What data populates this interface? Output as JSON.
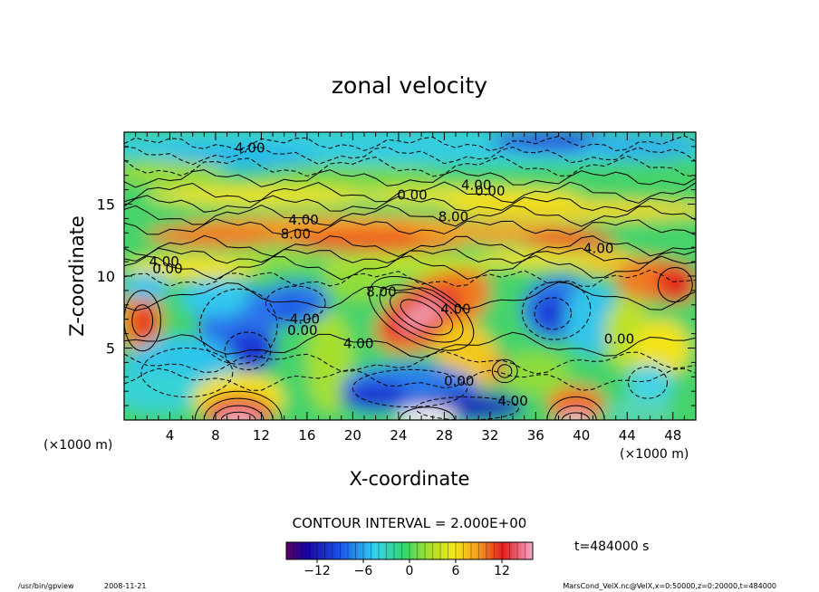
{
  "chart_data": {
    "type": "heatmap",
    "title": "zonal velocity",
    "xlabel": "X-coordinate",
    "ylabel": "Z-coordinate",
    "x_unit_left": "(×1000 m)",
    "x_unit_right": "(×1000 m)",
    "xlim": [
      0,
      50
    ],
    "ylim": [
      0,
      20
    ],
    "x_ticks": [
      4,
      8,
      12,
      16,
      20,
      24,
      28,
      32,
      36,
      40,
      44,
      48
    ],
    "y_ticks": [
      5,
      10,
      15
    ],
    "contour_interval_text": "CONTOUR INTERVAL = 2.000E+00",
    "time_text": "t=484000 s",
    "colorbar": {
      "range": [
        -16,
        16
      ],
      "ticks": [
        -12,
        -6,
        0,
        6,
        12
      ]
    },
    "contour_labels": [
      {
        "text": "4.00",
        "x": 11.0,
        "y": 18.6
      },
      {
        "text": "0.00",
        "x": 25.2,
        "y": 15.3
      },
      {
        "text": "4.00",
        "x": 30.8,
        "y": 16.0
      },
      {
        "text": "0.00",
        "x": 32.0,
        "y": 15.6
      },
      {
        "text": "4.00",
        "x": 15.7,
        "y": 13.6
      },
      {
        "text": "8.00",
        "x": 15.0,
        "y": 12.6
      },
      {
        "text": "8.00",
        "x": 28.8,
        "y": 13.8
      },
      {
        "text": "4.00",
        "x": 41.5,
        "y": 11.6
      },
      {
        "text": "4.00",
        "x": 3.5,
        "y": 10.7
      },
      {
        "text": "0.00",
        "x": 3.8,
        "y": 10.2
      },
      {
        "text": "8.00",
        "x": 22.5,
        "y": 8.6
      },
      {
        "text": "4.00",
        "x": 29.0,
        "y": 7.4
      },
      {
        "text": "4.00",
        "x": 15.8,
        "y": 6.7
      },
      {
        "text": "0.00",
        "x": 15.6,
        "y": 5.9
      },
      {
        "text": "4.00",
        "x": 20.5,
        "y": 5.0
      },
      {
        "text": "0.00",
        "x": 43.3,
        "y": 5.3
      },
      {
        "text": "0.00",
        "x": 29.3,
        "y": 2.4
      },
      {
        "text": "4.00",
        "x": 34.0,
        "y": 1.0
      }
    ]
  },
  "footer": {
    "program": "/usr/bin/gpview",
    "date": "2008-11-21",
    "source": "MarsCond_VelX.nc@VelX,x=0:50000,z=0:20000,t=484000"
  }
}
